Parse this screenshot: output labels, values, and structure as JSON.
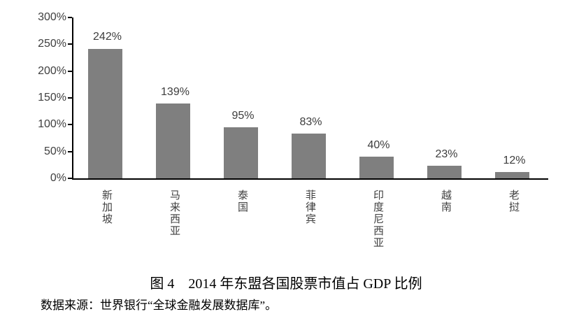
{
  "figure": {
    "caption": "图 4　2014 年东盟各国股票市值占 GDP 比例",
    "source_note": "数据来源：世界银行“全球金融发展数据库”。"
  },
  "chart_data": {
    "type": "bar",
    "title": "2014 年东盟各国股票市值占 GDP 比例",
    "figure_label": "图 4",
    "categories": [
      "新加坡",
      "马来西亚",
      "泰国",
      "菲律宾",
      "印度尼西亚",
      "越南",
      "老挝"
    ],
    "values": [
      242,
      139,
      95,
      83,
      40,
      23,
      12
    ],
    "data_labels": [
      "242%",
      "139%",
      "95%",
      "83%",
      "40%",
      "23%",
      "12%"
    ],
    "xlabel": "",
    "ylabel": "",
    "ylim": [
      0,
      300
    ],
    "ytick_step": 50,
    "ytick_labels": [
      "0%",
      "50%",
      "100%",
      "150%",
      "200%",
      "250%",
      "300%"
    ],
    "bar_color": "#7f7f7f",
    "axis_color": "#000000",
    "tick_label_color": "#3f3f3f",
    "data_label_color": "#3d3d3d",
    "grid": false,
    "legend": "none",
    "orientation": "vertical",
    "category_text_direction": "vertical-stacked"
  }
}
